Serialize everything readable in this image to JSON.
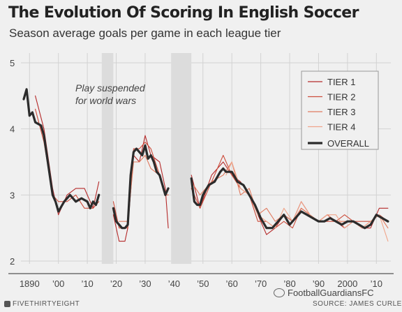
{
  "chart_data": {
    "type": "line",
    "title": "The Evolution Of Scoring In English Soccer",
    "subtitle": "Season average goals per game in each league tier",
    "xlabel": "",
    "ylabel": "",
    "xlim": [
      1888,
      2015
    ],
    "ylim": [
      2,
      5
    ],
    "yticks": [
      {
        "value": 2,
        "label": "2"
      },
      {
        "value": 3,
        "label": "3"
      },
      {
        "value": 4,
        "label": "4"
      },
      {
        "value": 5,
        "label": "5"
      }
    ],
    "xticks": [
      {
        "value": 1890,
        "label": "1890"
      },
      {
        "value": 1900,
        "label": "’00"
      },
      {
        "value": 1910,
        "label": "’10"
      },
      {
        "value": 1920,
        "label": "’20"
      },
      {
        "value": 1930,
        "label": "’30"
      },
      {
        "value": 1940,
        "label": "’40"
      },
      {
        "value": 1950,
        "label": "’50"
      },
      {
        "value": 1960,
        "label": "’60"
      },
      {
        "value": 1970,
        "label": "’70"
      },
      {
        "value": 1980,
        "label": "’80"
      },
      {
        "value": 1990,
        "label": "’90"
      },
      {
        "value": 2000,
        "label": "2000"
      },
      {
        "value": 2010,
        "label": "’10"
      }
    ],
    "grid": true,
    "legend_position": "top-right",
    "shaded_periods": [
      [
        1915,
        1919
      ],
      [
        1939,
        1946
      ]
    ],
    "annotation": "Play suspended for world wars",
    "series": [
      {
        "name": "TIER 1",
        "color": "#b52a2a",
        "segments": [
          [
            [
              1892,
              4.5
            ],
            [
              1895,
              4.0
            ],
            [
              1898,
              3.1
            ],
            [
              1900,
              2.7
            ],
            [
              1903,
              3.0
            ],
            [
              1906,
              3.1
            ],
            [
              1909,
              3.1
            ],
            [
              1912,
              2.8
            ],
            [
              1914,
              3.2
            ]
          ],
          [
            [
              1919,
              2.7
            ],
            [
              1921,
              2.3
            ],
            [
              1923,
              2.3
            ],
            [
              1924,
              2.5
            ],
            [
              1926,
              3.6
            ],
            [
              1928,
              3.5
            ],
            [
              1930,
              3.9
            ],
            [
              1932,
              3.6
            ],
            [
              1935,
              3.5
            ],
            [
              1937,
              3.1
            ],
            [
              1938,
              2.5
            ]
          ],
          [
            [
              1946,
              3.3
            ],
            [
              1949,
              2.8
            ],
            [
              1953,
              3.3
            ],
            [
              1957,
              3.5
            ],
            [
              1960,
              3.3
            ],
            [
              1963,
              3.2
            ],
            [
              1966,
              3.0
            ],
            [
              1969,
              2.7
            ],
            [
              1972,
              2.4
            ],
            [
              1975,
              2.5
            ],
            [
              1978,
              2.7
            ],
            [
              1981,
              2.6
            ],
            [
              1984,
              2.9
            ],
            [
              1987,
              2.7
            ],
            [
              1990,
              2.6
            ],
            [
              1993,
              2.7
            ],
            [
              1996,
              2.6
            ],
            [
              1999,
              2.5
            ],
            [
              2002,
              2.6
            ],
            [
              2005,
              2.5
            ],
            [
              2008,
              2.5
            ],
            [
              2011,
              2.8
            ],
            [
              2014,
              2.8
            ]
          ]
        ]
      },
      {
        "name": "TIER 2",
        "color": "#cc4d3c",
        "segments": [
          [
            [
              1892,
              4.3
            ],
            [
              1895,
              3.8
            ],
            [
              1898,
              3.0
            ],
            [
              1900,
              2.9
            ],
            [
              1903,
              2.9
            ],
            [
              1906,
              3.0
            ],
            [
              1909,
              2.8
            ],
            [
              1912,
              2.8
            ],
            [
              1914,
              2.9
            ]
          ],
          [
            [
              1919,
              2.9
            ],
            [
              1921,
              2.5
            ],
            [
              1924,
              2.5
            ],
            [
              1926,
              3.7
            ],
            [
              1928,
              3.7
            ],
            [
              1930,
              3.8
            ],
            [
              1932,
              3.7
            ],
            [
              1935,
              3.3
            ],
            [
              1937,
              3.0
            ],
            [
              1938,
              3.0
            ]
          ],
          [
            [
              1946,
              3.1
            ],
            [
              1949,
              2.8
            ],
            [
              1953,
              3.2
            ],
            [
              1957,
              3.6
            ],
            [
              1960,
              3.3
            ],
            [
              1963,
              3.1
            ],
            [
              1966,
              3.0
            ],
            [
              1969,
              2.6
            ],
            [
              1972,
              2.6
            ],
            [
              1975,
              2.5
            ],
            [
              1978,
              2.6
            ],
            [
              1981,
              2.5
            ],
            [
              1984,
              2.8
            ],
            [
              1987,
              2.7
            ],
            [
              1990,
              2.6
            ],
            [
              1993,
              2.6
            ],
            [
              1996,
              2.6
            ],
            [
              1999,
              2.7
            ],
            [
              2002,
              2.6
            ],
            [
              2005,
              2.6
            ],
            [
              2008,
              2.6
            ],
            [
              2011,
              2.7
            ],
            [
              2014,
              2.6
            ]
          ]
        ]
      },
      {
        "name": "TIER 3",
        "color": "#e07a5f",
        "segments": [
          [
            [
              1921,
              2.6
            ],
            [
              1924,
              2.6
            ],
            [
              1926,
              3.5
            ],
            [
              1928,
              3.5
            ],
            [
              1930,
              3.6
            ],
            [
              1932,
              3.4
            ],
            [
              1935,
              3.3
            ],
            [
              1937,
              3.0
            ],
            [
              1938,
              3.0
            ]
          ],
          [
            [
              1946,
              3.2
            ],
            [
              1949,
              3.0
            ],
            [
              1953,
              3.2
            ],
            [
              1957,
              3.3
            ],
            [
              1960,
              3.5
            ],
            [
              1963,
              3.0
            ],
            [
              1966,
              3.1
            ],
            [
              1969,
              2.7
            ],
            [
              1972,
              2.8
            ],
            [
              1975,
              2.6
            ],
            [
              1978,
              2.7
            ],
            [
              1981,
              2.6
            ],
            [
              1984,
              2.8
            ],
            [
              1987,
              2.7
            ],
            [
              1990,
              2.6
            ],
            [
              1993,
              2.7
            ],
            [
              1996,
              2.6
            ],
            [
              1999,
              2.6
            ],
            [
              2002,
              2.6
            ],
            [
              2005,
              2.5
            ],
            [
              2008,
              2.6
            ],
            [
              2011,
              2.7
            ],
            [
              2014,
              2.5
            ]
          ]
        ]
      },
      {
        "name": "TIER 4",
        "color": "#f0a58a",
        "segments": [
          [
            [
              1958,
              3.3
            ],
            [
              1960,
              3.5
            ],
            [
              1963,
              3.1
            ],
            [
              1966,
              3.0
            ],
            [
              1969,
              2.7
            ],
            [
              1972,
              2.6
            ],
            [
              1975,
              2.5
            ],
            [
              1978,
              2.8
            ],
            [
              1981,
              2.6
            ],
            [
              1984,
              2.9
            ],
            [
              1987,
              2.7
            ],
            [
              1990,
              2.6
            ],
            [
              1993,
              2.7
            ],
            [
              1996,
              2.7
            ],
            [
              1999,
              2.5
            ],
            [
              2002,
              2.6
            ],
            [
              2005,
              2.5
            ],
            [
              2008,
              2.6
            ],
            [
              2011,
              2.7
            ],
            [
              2014,
              2.3
            ]
          ]
        ]
      },
      {
        "name": "OVERALL",
        "color": "#2b2b2b",
        "segments": [
          [
            [
              1888,
              4.45
            ],
            [
              1889,
              4.6
            ],
            [
              1890,
              4.2
            ],
            [
              1891,
              4.25
            ],
            [
              1892,
              4.1
            ],
            [
              1894,
              4.05
            ],
            [
              1895,
              3.9
            ],
            [
              1896,
              3.6
            ],
            [
              1898,
              3.0
            ],
            [
              1899,
              2.9
            ],
            [
              1900,
              2.75
            ],
            [
              1902,
              2.9
            ],
            [
              1904,
              3.0
            ],
            [
              1906,
              2.9
            ],
            [
              1908,
              2.95
            ],
            [
              1910,
              2.9
            ],
            [
              1911,
              2.8
            ],
            [
              1912,
              2.9
            ],
            [
              1913,
              2.85
            ],
            [
              1914,
              3.0
            ]
          ],
          [
            [
              1919,
              2.8
            ],
            [
              1920,
              2.6
            ],
            [
              1921,
              2.55
            ],
            [
              1922,
              2.5
            ],
            [
              1923,
              2.5
            ],
            [
              1924,
              2.55
            ],
            [
              1925,
              3.3
            ],
            [
              1926,
              3.65
            ],
            [
              1927,
              3.7
            ],
            [
              1928,
              3.65
            ],
            [
              1929,
              3.6
            ],
            [
              1930,
              3.75
            ],
            [
              1931,
              3.55
            ],
            [
              1932,
              3.6
            ],
            [
              1933,
              3.5
            ],
            [
              1934,
              3.35
            ],
            [
              1935,
              3.3
            ],
            [
              1936,
              3.15
            ],
            [
              1937,
              3.0
            ],
            [
              1938,
              3.1
            ]
          ],
          [
            [
              1946,
              3.25
            ],
            [
              1947,
              2.9
            ],
            [
              1948,
              2.85
            ],
            [
              1949,
              2.85
            ],
            [
              1950,
              3.0
            ],
            [
              1952,
              3.15
            ],
            [
              1954,
              3.2
            ],
            [
              1956,
              3.35
            ],
            [
              1957,
              3.4
            ],
            [
              1958,
              3.35
            ],
            [
              1960,
              3.35
            ],
            [
              1962,
              3.2
            ],
            [
              1964,
              3.15
            ],
            [
              1966,
              3.0
            ],
            [
              1968,
              2.85
            ],
            [
              1970,
              2.65
            ],
            [
              1972,
              2.5
            ],
            [
              1974,
              2.5
            ],
            [
              1976,
              2.6
            ],
            [
              1978,
              2.7
            ],
            [
              1980,
              2.55
            ],
            [
              1982,
              2.65
            ],
            [
              1984,
              2.75
            ],
            [
              1986,
              2.7
            ],
            [
              1988,
              2.65
            ],
            [
              1990,
              2.6
            ],
            [
              1992,
              2.6
            ],
            [
              1994,
              2.65
            ],
            [
              1996,
              2.6
            ],
            [
              1998,
              2.55
            ],
            [
              2000,
              2.6
            ],
            [
              2002,
              2.6
            ],
            [
              2004,
              2.55
            ],
            [
              2006,
              2.5
            ],
            [
              2008,
              2.55
            ],
            [
              2010,
              2.7
            ],
            [
              2012,
              2.65
            ],
            [
              2014,
              2.6
            ]
          ]
        ]
      }
    ]
  },
  "header": {
    "title": "The Evolution Of Scoring In English Soccer",
    "subtitle": "Season average goals per game in each league tier"
  },
  "annotation": {
    "line1": "Play suspended",
    "line2": "for world wars"
  },
  "footer": {
    "brand": "FIVETHIRTYEIGHT",
    "brand_icon": "fivethirtyeight-logo-icon",
    "source": "SOURCE: JAMES CURLEY",
    "watermark": "FootballGuardiansFC",
    "watermark_icon": "wechat-icon"
  }
}
